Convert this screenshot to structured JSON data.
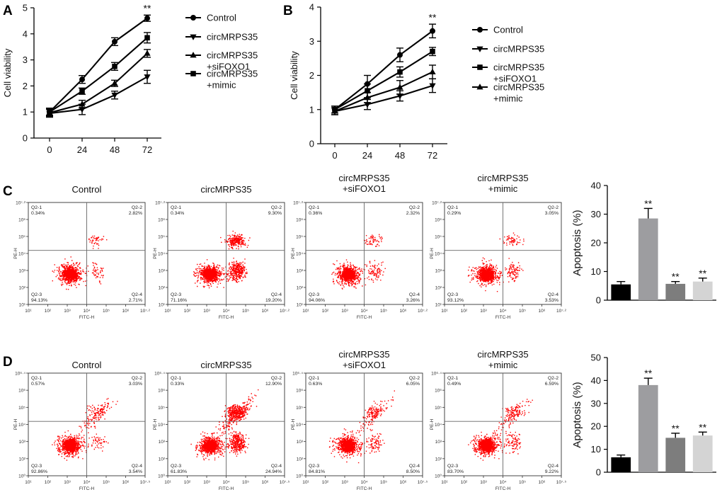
{
  "figure": {
    "panel_labels": [
      "A",
      "B",
      "C",
      "D"
    ],
    "significance_mark": "**"
  },
  "colors": {
    "axis": "#000000",
    "line": "#000000",
    "dot": "#ff0000",
    "gate": "#666666",
    "text": "#111111",
    "bar_fills": [
      "#000000",
      "#9d9da0",
      "#7d7d7d",
      "#d4d4d4"
    ]
  },
  "chart_data": [
    {
      "id": "A",
      "type": "line",
      "title": "",
      "xlabel": "",
      "ylabel": "Cell viability",
      "x": [
        0,
        24,
        48,
        72
      ],
      "x_ticks": [
        "0",
        "24",
        "48",
        "72"
      ],
      "ylim": [
        0,
        5
      ],
      "y_ticks": [
        "0",
        "1",
        "2",
        "3",
        "4",
        "5"
      ],
      "grid": false,
      "legend_position": "right",
      "series": [
        {
          "name": "Control",
          "marker": "circle",
          "values": [
            1.0,
            2.25,
            3.7,
            4.6
          ],
          "errors": [
            0.15,
            0.15,
            0.15,
            0.12
          ]
        },
        {
          "name": "circMRPS35",
          "marker": "triangle-down",
          "values": [
            0.95,
            1.1,
            1.65,
            2.35
          ],
          "errors": [
            0.15,
            0.2,
            0.15,
            0.25
          ]
        },
        {
          "name": "circMRPS35\n+siFOXO1",
          "marker": "triangle-up",
          "values": [
            0.97,
            1.3,
            2.1,
            3.25
          ],
          "errors": [
            0.15,
            0.15,
            0.12,
            0.15
          ]
        },
        {
          "name": "circMRPS35\n+mimic",
          "marker": "square",
          "values": [
            1.0,
            1.8,
            2.75,
            3.85
          ],
          "errors": [
            0.12,
            0.12,
            0.15,
            0.2
          ]
        }
      ],
      "annotations": [
        {
          "x": 72,
          "y": 4.85,
          "text": "**"
        }
      ]
    },
    {
      "id": "B",
      "type": "line",
      "title": "",
      "xlabel": "",
      "ylabel": "Cell viability",
      "x": [
        0,
        24,
        48,
        72
      ],
      "x_ticks": [
        "0",
        "24",
        "48",
        "72"
      ],
      "ylim": [
        0,
        4
      ],
      "y_ticks": [
        "0",
        "1",
        "2",
        "3",
        "4"
      ],
      "grid": false,
      "legend_position": "right",
      "series": [
        {
          "name": "Control",
          "marker": "circle",
          "values": [
            1.0,
            1.75,
            2.6,
            3.3
          ],
          "errors": [
            0.1,
            0.25,
            0.2,
            0.2
          ]
        },
        {
          "name": "circMRPS35",
          "marker": "triangle-down",
          "values": [
            0.95,
            1.15,
            1.4,
            1.7
          ],
          "errors": [
            0.1,
            0.15,
            0.15,
            0.2
          ]
        },
        {
          "name": "circMRPS35\n+siFOXO1",
          "marker": "square",
          "values": [
            1.0,
            1.55,
            2.1,
            2.7
          ],
          "errors": [
            0.1,
            0.2,
            0.15,
            0.12
          ]
        },
        {
          "name": "circMRPS35\n+mimic",
          "marker": "triangle-up",
          "values": [
            0.95,
            1.35,
            1.65,
            2.1
          ],
          "errors": [
            0.1,
            0.15,
            0.2,
            0.2
          ]
        }
      ],
      "annotations": [
        {
          "x": 72,
          "y": 3.6,
          "text": "**"
        }
      ]
    },
    {
      "id": "C-bar",
      "type": "bar",
      "title": "",
      "xlabel": "",
      "ylabel": "Apoptosis (%)",
      "categories": [
        "Control",
        "circMRPS35",
        "circMRPS35 +siFOXO1",
        "circMRPS35 +mimic"
      ],
      "values": [
        5.5,
        28.5,
        5.7,
        6.5
      ],
      "errors": [
        1.0,
        3.5,
        0.8,
        1.2
      ],
      "significance": [
        "",
        "**",
        "**",
        "**"
      ],
      "ylim": [
        0,
        40
      ],
      "y_ticks": [
        "0",
        "10",
        "20",
        "30",
        "40"
      ],
      "grid": false
    },
    {
      "id": "D-bar",
      "type": "bar",
      "title": "",
      "xlabel": "",
      "ylabel": "Apoptosis (%)",
      "categories": [
        "Control",
        "circMRPS35",
        "circMRPS35 +siFOXO1",
        "circMRPS35 +mimic"
      ],
      "values": [
        6.5,
        38.0,
        15.0,
        16.0
      ],
      "errors": [
        1.0,
        3.0,
        2.0,
        1.5
      ],
      "significance": [
        "",
        "**",
        "**",
        "**"
      ],
      "ylim": [
        0,
        50
      ],
      "y_ticks": [
        "0",
        "10",
        "20",
        "30",
        "40",
        "50"
      ],
      "grid": false
    }
  ],
  "flow_rows": [
    {
      "id": "C",
      "xlabel": "FITC-H",
      "ylabel": "PE-H",
      "x_ticks": [
        "10¹",
        "10²",
        "10³",
        "10⁴",
        "10⁵",
        "10⁶",
        "10⁷·²"
      ],
      "y_ticks": [
        "10¹",
        "10²",
        "10³",
        "10⁴",
        "10⁵",
        "10⁶",
        "10⁷·²"
      ],
      "panels": [
        {
          "title": "Control",
          "q1": "Q2-1",
          "q1v": "0.34%",
          "q2": "Q2-2",
          "q2v": "2.82%",
          "q3": "Q2-3",
          "q3v": "94.13%",
          "q4": "Q2-4",
          "q4v": "2.71%"
        },
        {
          "title": "circMRPS35",
          "q1": "Q2-1",
          "q1v": "0.34%",
          "q2": "Q2-2",
          "q2v": "9.30%",
          "q3": "Q2-3",
          "q3v": "71.16%",
          "q4": "Q2-4",
          "q4v": "19.20%"
        },
        {
          "title": "circMRPS35\n+siFOXO1",
          "q1": "Q2-1",
          "q1v": "0.36%",
          "q2": "Q2-2",
          "q2v": "2.32%",
          "q3": "Q2-3",
          "q3v": "94.06%",
          "q4": "Q2-4",
          "q4v": "3.26%"
        },
        {
          "title": "circMRPS35\n+mimic",
          "q1": "Q2-1",
          "q1v": "0.29%",
          "q2": "Q2-2",
          "q2v": "3.05%",
          "q3": "Q2-3",
          "q3v": "93.12%",
          "q4": "Q2-4",
          "q4v": "3.53%"
        }
      ]
    },
    {
      "id": "D",
      "xlabel": "FITC-H",
      "ylabel": "PE-H",
      "x_ticks": [
        "10¹",
        "10²",
        "10³",
        "10⁴",
        "10⁵",
        "10⁶",
        "10⁷·⁵"
      ],
      "y_ticks": [
        "10⁰",
        "10²",
        "10³",
        "10⁴",
        "10⁵",
        "10⁶",
        "10⁶·⁴"
      ],
      "panels": [
        {
          "title": "Control",
          "q1": "Q2-1",
          "q1v": "0.57%",
          "q2": "Q2-2",
          "q2v": "3.03%",
          "q3": "Q2-3",
          "q3v": "92.86%",
          "q4": "Q2-4",
          "q4v": "3.54%"
        },
        {
          "title": "circMRPS35",
          "q1": "Q2-1",
          "q1v": "0.33%",
          "q2": "Q2-2",
          "q2v": "12.90%",
          "q3": "Q2-3",
          "q3v": "61.83%",
          "q4": "Q2-4",
          "q4v": "24.94%"
        },
        {
          "title": "circMRPS35\n+siFOXO1",
          "q1": "Q2-1",
          "q1v": "0.63%",
          "q2": "Q2-2",
          "q2v": "6.05%",
          "q3": "Q2-3",
          "q3v": "84.81%",
          "q4": "Q2-4",
          "q4v": "8.50%"
        },
        {
          "title": "circMRPS35\n+mimic",
          "q1": "Q2-1",
          "q1v": "0.49%",
          "q2": "Q2-2",
          "q2v": "6.59%",
          "q3": "Q2-3",
          "q3v": "83.70%",
          "q4": "Q2-4",
          "q4v": "9.22%"
        }
      ]
    }
  ]
}
